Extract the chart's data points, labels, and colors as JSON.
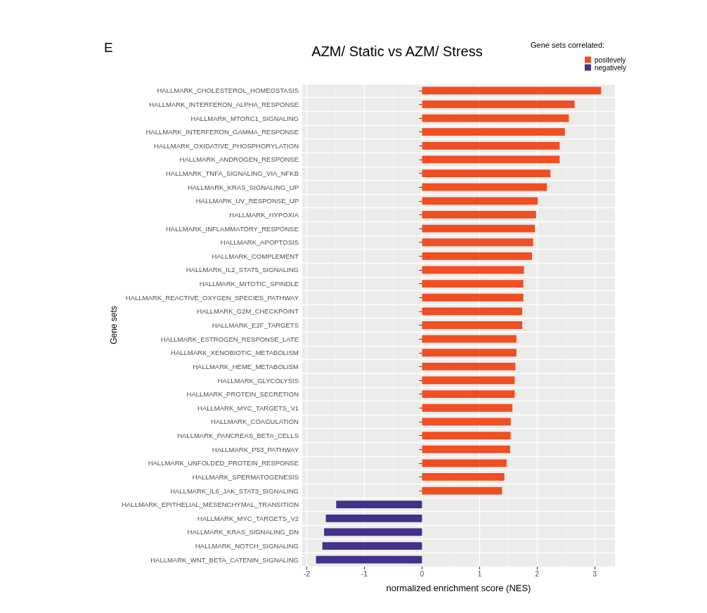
{
  "chart_data": {
    "type": "bar",
    "orientation": "horizontal",
    "title": "AZM/ Static vs AZM/ Stress",
    "xlabel": "normalized enrichment score (NES)",
    "ylabel": "Gene sets",
    "legend_title": "Gene sets correlated:",
    "annotations": [
      "E"
    ],
    "categories": [
      "HALLMARK_CHOLESTEROL_HOMEOSTASIS",
      "HALLMARK_INTERFERON_ALPHA_RESPONSE",
      "HALLMARK_MTORC1_SIGNALING",
      "HALLMARK_INTERFERON_GAMMA_RESPONSE",
      "HALLMARK_OXIDATIVE_PHOSPHORYLATION",
      "HALLMARK_ANDROGEN_RESPONSE",
      "HALLMARK_TNFA_SIGNALING_VIA_NFKB",
      "HALLMARK_KRAS_SIGNALING_UP",
      "HALLMARK_UV_RESPONSE_UP",
      "HALLMARK_HYPOXIA",
      "HALLMARK_INFLAMMATORY_RESPONSE",
      "HALLMARK_APOPTOSIS",
      "HALLMARK_COMPLEMENT",
      "HALLMARK_IL2_STAT5_SIGNALING",
      "HALLMARK_MITOTIC_SPINDLE",
      "HALLMARK_REACTIVE_OXYGEN_SPECIES_PATHWAY",
      "HALLMARK_G2M_CHECKPOINT",
      "HALLMARK_E2F_TARGETS",
      "HALLMARK_ESTROGEN_RESPONSE_LATE",
      "HALLMARK_XENOBIOTIC_METABOLISM",
      "HALLMARK_HEME_METABOLISM",
      "HALLMARK_GLYCOLYSIS",
      "HALLMARK_PROTEIN_SECRETION",
      "HALLMARK_MYC_TARGETS_V1",
      "HALLMARK_COAGULATION",
      "HALLMARK_PANCREAS_BETA_CELLS",
      "HALLMARK_P53_PATHWAY",
      "HALLMARK_UNFOLDED_PROTEIN_RESPONSE",
      "HALLMARK_SPERMATOGENESIS",
      "HALLMARK_IL6_JAK_STAT3_SIGNALING",
      "HALLMARK_EPITHELIAL_MESENCHYMAL_TRANSITION",
      "HALLMARK_MYC_TARGETS_V2",
      "HALLMARK_KRAS_SIGNALING_DN",
      "HALLMARK_NOTCH_SIGNALING",
      "HALLMARK_WNT_BETA_CATENIN_SIGNALING"
    ],
    "series": [
      {
        "name": "positevely",
        "color": "#f04e23",
        "values": [
          3.11,
          2.65,
          2.55,
          2.48,
          2.39,
          2.39,
          2.23,
          2.17,
          2.01,
          1.98,
          1.96,
          1.93,
          1.91,
          1.77,
          1.76,
          1.76,
          1.74,
          1.74,
          1.64,
          1.64,
          1.62,
          1.61,
          1.61,
          1.57,
          1.54,
          1.54,
          1.53,
          1.47,
          1.43,
          1.39,
          null,
          null,
          null,
          null,
          null
        ]
      },
      {
        "name": "negatively",
        "color": "#44318a",
        "values": [
          null,
          null,
          null,
          null,
          null,
          null,
          null,
          null,
          null,
          null,
          null,
          null,
          null,
          null,
          null,
          null,
          null,
          null,
          null,
          null,
          null,
          null,
          null,
          null,
          null,
          null,
          null,
          null,
          null,
          null,
          -1.49,
          -1.67,
          -1.7,
          -1.73,
          -1.84
        ]
      }
    ],
    "xlim": [
      -2.08,
      3.35
    ],
    "xticks": [
      -2,
      -1,
      0,
      1,
      2,
      3
    ],
    "grid": true,
    "legend": "top right"
  }
}
